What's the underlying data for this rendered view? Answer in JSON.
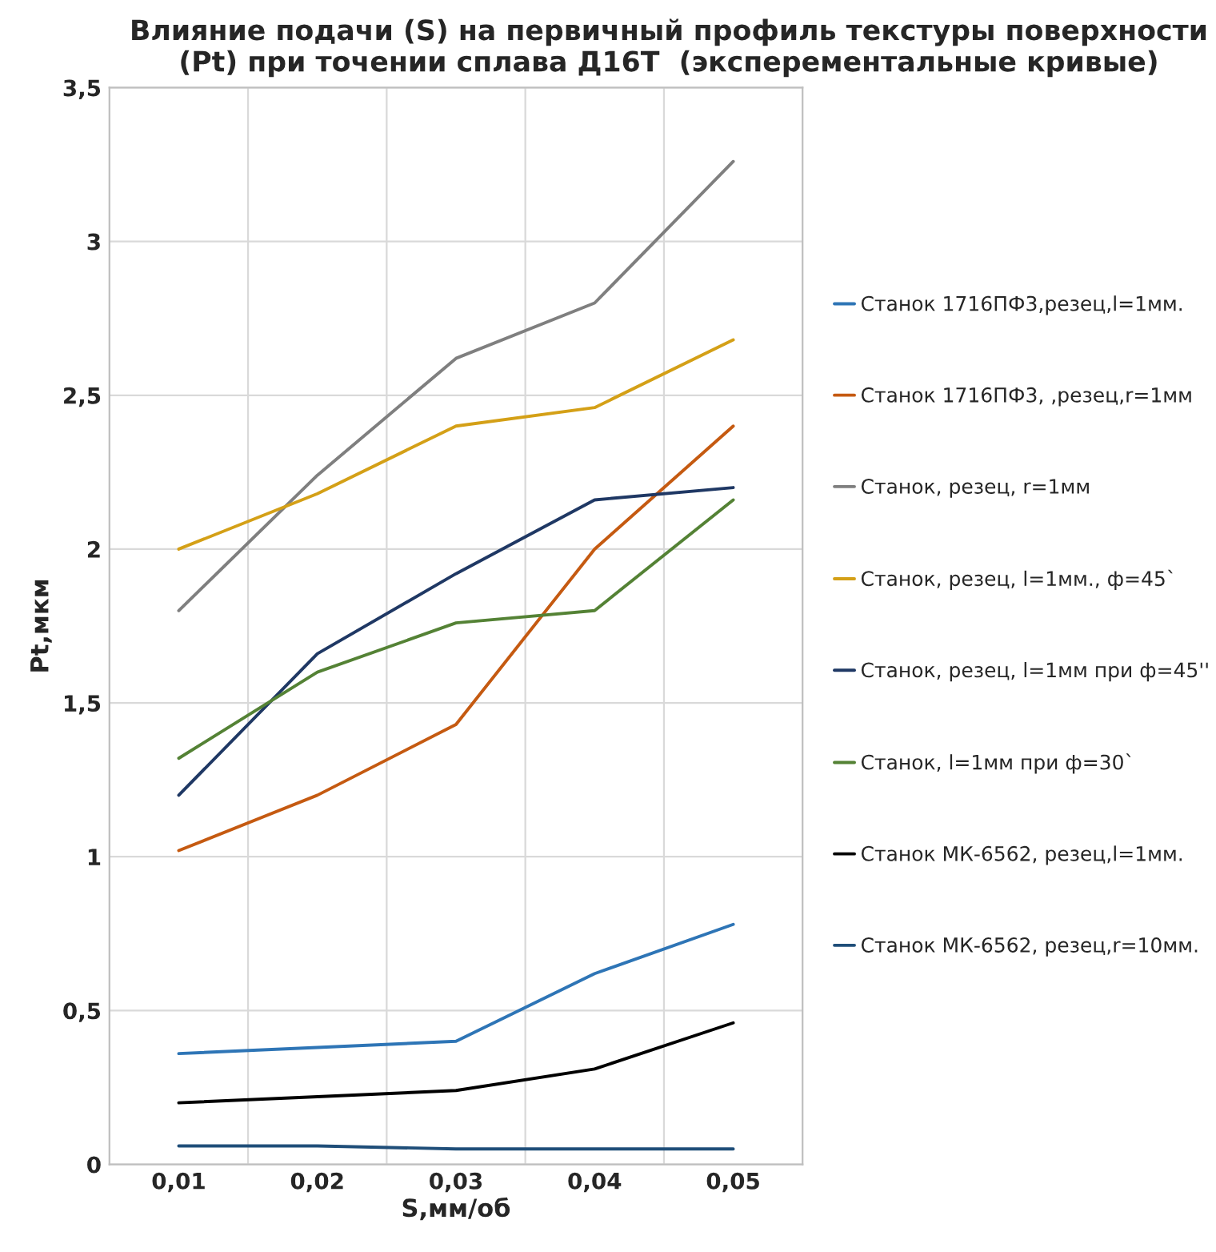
{
  "chart_data": {
    "type": "line",
    "title": "Влияние подачи (S) на первичный профиль текстуры поверхности (Pt) при точении сплава Д16Т  (эксперементальные кривые)",
    "xlabel": "S,мм/об",
    "ylabel": "Pt,мкм",
    "categories": [
      "0,01",
      "0,02",
      "0,03",
      "0,04",
      "0,05"
    ],
    "ylim": [
      0,
      3.5
    ],
    "yticks": [
      0,
      {
        "value": 0.5,
        "label": "0,5"
      },
      1,
      {
        "value": 1.5,
        "label": "1,5"
      },
      2,
      {
        "value": 2.5,
        "label": "2,5"
      },
      3,
      {
        "value": 3.5,
        "label": "3,5"
      }
    ],
    "grid": true,
    "legend": "right",
    "marker": "none",
    "line_style": "solid",
    "series": [
      {
        "name": "Станок 1716ПФ3,резец,l=1мм.",
        "color": "#2e75b6",
        "values": [
          0.36,
          0.38,
          0.4,
          0.62,
          0.78
        ]
      },
      {
        "name": "Станок 1716ПФ3, ,резец,r=1мм",
        "color": "#c55a11",
        "values": [
          1.02,
          1.2,
          1.43,
          2.0,
          2.4
        ]
      },
      {
        "name": "Станок, резец, r=1мм",
        "color": "#7f7f7f",
        "values": [
          1.8,
          2.24,
          2.62,
          2.8,
          3.26
        ]
      },
      {
        "name": "Станок, резец, l=1мм., ф=45`",
        "color": "#d4a017",
        "values": [
          2.0,
          2.18,
          2.4,
          2.46,
          2.68
        ]
      },
      {
        "name": "Станок, резец, l=1мм при ф=45''",
        "color": "#1f3864",
        "values": [
          1.2,
          1.66,
          1.92,
          2.16,
          2.2
        ]
      },
      {
        "name": "Станок, l=1мм при ф=30`",
        "color": "#548235",
        "values": [
          1.32,
          1.6,
          1.76,
          1.8,
          2.16
        ]
      },
      {
        "name": "Станок МК-6562, резец,l=1мм.",
        "color": "#000000",
        "values": [
          0.2,
          0.22,
          0.24,
          0.31,
          0.46
        ]
      },
      {
        "name": "Станок МК-6562, резец,r=10мм.",
        "color": "#1f4e79",
        "values": [
          0.06,
          0.06,
          0.05,
          0.05,
          0.05
        ]
      }
    ]
  }
}
